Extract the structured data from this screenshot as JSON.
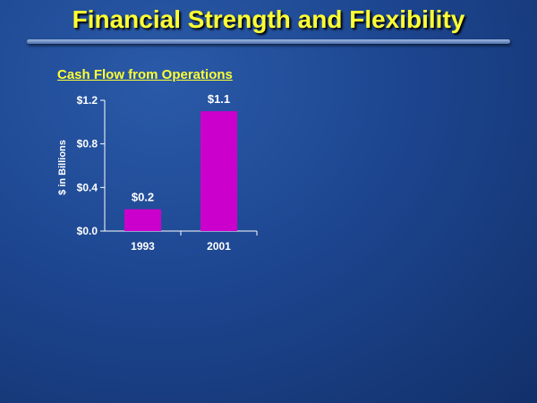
{
  "slide": {
    "title": "Financial Strength and Flexibility"
  },
  "colors": {
    "title": "#ffff33",
    "bar": "#cc00cc",
    "text": "#ffffff"
  },
  "chart_data": {
    "type": "bar",
    "title": "Cash Flow from Operations",
    "xlabel": "",
    "ylabel": "$ in Billions",
    "categories": [
      "1993",
      "2001"
    ],
    "values": [
      0.2,
      1.1
    ],
    "data_labels": [
      "$0.2",
      "$1.1"
    ],
    "ylim": [
      0,
      1.2
    ],
    "yticks": [
      0.0,
      0.4,
      0.8,
      1.2
    ],
    "ytick_labels": [
      "$0.0",
      "$0.4",
      "$0.8",
      "$1.2"
    ],
    "grid": false,
    "legend": "none"
  }
}
